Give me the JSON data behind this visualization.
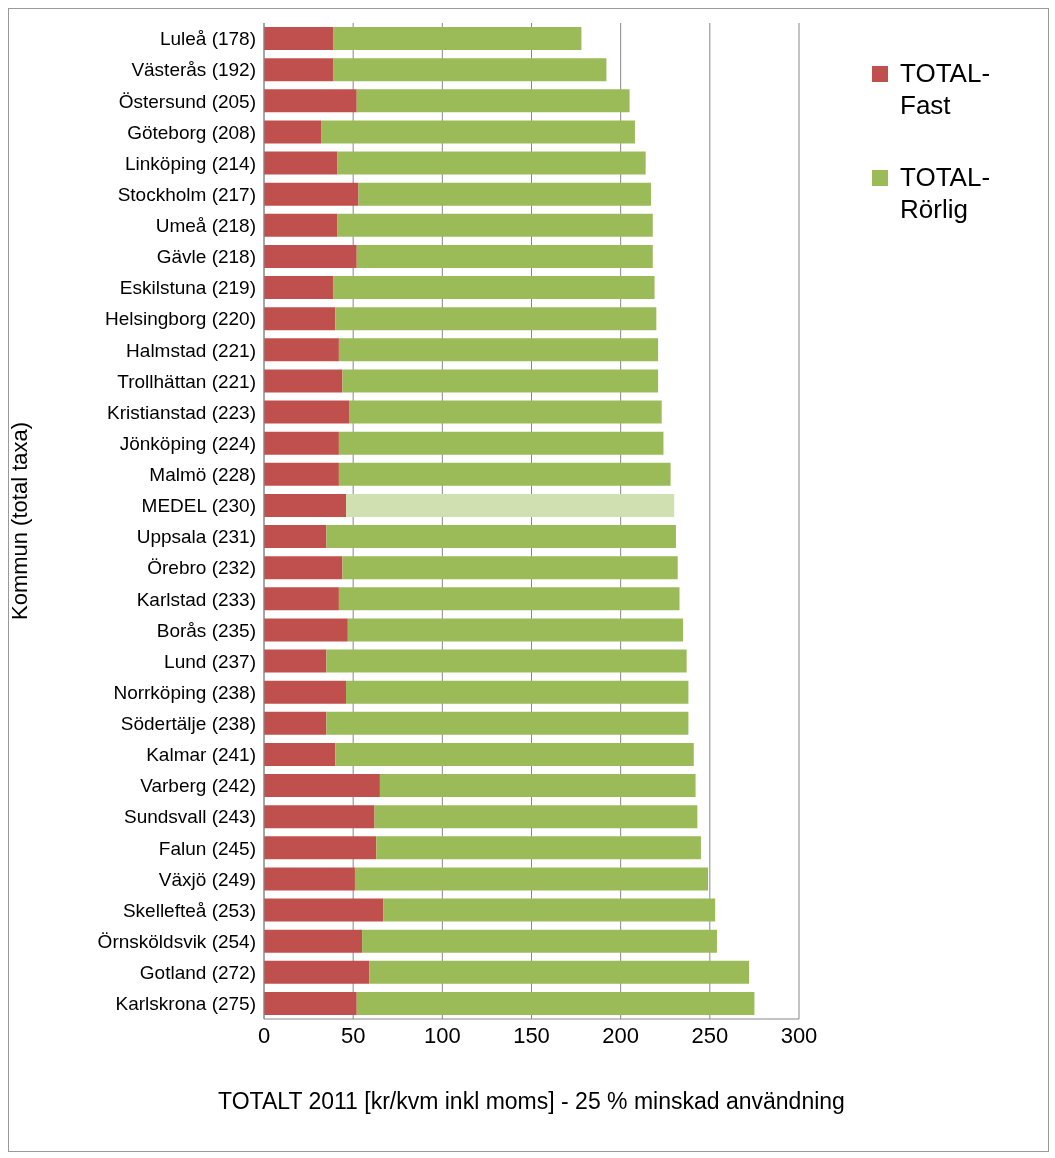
{
  "chart_data": {
    "type": "bar",
    "orientation": "horizontal",
    "stacked": true,
    "xlabel": "TOTALT 2011 [kr/kvm inkl moms] - 25 % minskad användning",
    "ylabel": "Kommun (total taxa)",
    "categories": [
      "Luleå (178)",
      "Västerås (192)",
      "Östersund (205)",
      "Göteborg (208)",
      "Linköping (214)",
      "Stockholm (217)",
      "Umeå (218)",
      "Gävle (218)",
      "Eskilstuna (219)",
      "Helsingborg (220)",
      "Halmstad (221)",
      "Trollhättan (221)",
      "Kristianstad (223)",
      "Jönköping (224)",
      "Malmö (228)",
      "MEDEL (230)",
      "Uppsala (231)",
      "Örebro (232)",
      "Karlstad (233)",
      "Borås (235)",
      "Lund (237)",
      "Norrköping (238)",
      "Södertälje (238)",
      "Kalmar (241)",
      "Varberg (242)",
      "Sundsvall (243)",
      "Falun (245)",
      "Växjö (249)",
      "Skellefteå (253)",
      "Örnsköldsvik (254)",
      "Gotland (272)",
      "Karlskrona (275)"
    ],
    "series": [
      {
        "name": "TOTAL-Fast",
        "color": "#c0504d",
        "values": [
          39,
          39,
          52,
          32,
          41,
          53,
          41,
          52,
          39,
          40,
          42,
          44,
          48,
          42,
          42,
          46,
          35,
          44,
          42,
          47,
          35,
          46,
          35,
          40,
          65,
          62,
          63,
          51,
          67,
          55,
          59,
          52
        ]
      },
      {
        "name": "TOTAL-Rörlig",
        "color": "#9bbb59",
        "colors": [
          "#9bbb59",
          "#9bbb59",
          "#9bbb59",
          "#9bbb59",
          "#9bbb59",
          "#9bbb59",
          "#9bbb59",
          "#9bbb59",
          "#9bbb59",
          "#9bbb59",
          "#9bbb59",
          "#9bbb59",
          "#9bbb59",
          "#9bbb59",
          "#9bbb59",
          "#d0e0b0",
          "#9bbb59",
          "#9bbb59",
          "#9bbb59",
          "#9bbb59",
          "#9bbb59",
          "#9bbb59",
          "#9bbb59",
          "#9bbb59",
          "#9bbb59",
          "#9bbb59",
          "#9bbb59",
          "#9bbb59",
          "#9bbb59",
          "#9bbb59",
          "#9bbb59",
          "#9bbb59"
        ],
        "values": [
          139,
          153,
          153,
          176,
          173,
          164,
          177,
          166,
          180,
          180,
          179,
          177,
          175,
          182,
          186,
          184,
          196,
          188,
          191,
          188,
          202,
          192,
          203,
          201,
          177,
          181,
          182,
          198,
          186,
          199,
          213,
          223
        ]
      }
    ],
    "xlim": [
      0,
      300
    ],
    "xticks": [
      0,
      50,
      100,
      150,
      200,
      250,
      300
    ],
    "grid": "x",
    "legend": "top right"
  }
}
